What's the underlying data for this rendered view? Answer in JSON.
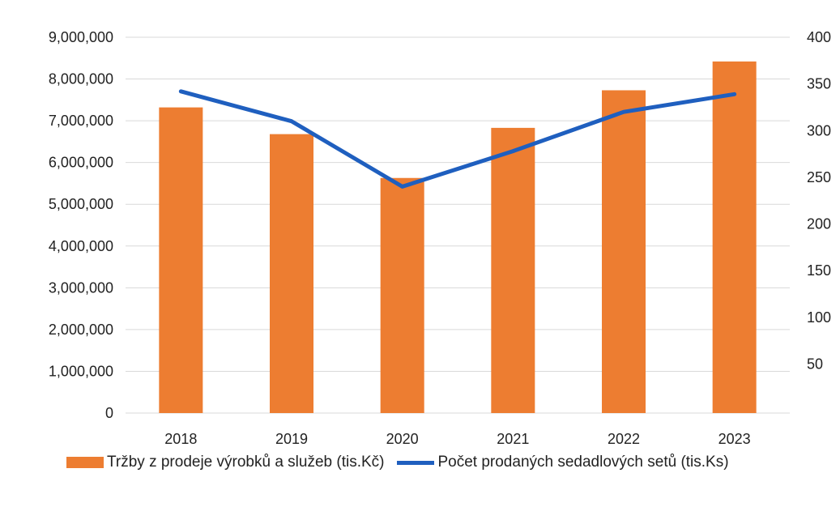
{
  "chart_data": {
    "type": "bar",
    "categories": [
      "2018",
      "2019",
      "2020",
      "2021",
      "2022",
      "2023"
    ],
    "series": [
      {
        "name": "Tržby z prodeje výrobků a služeb (tis.Kč)",
        "type": "bar",
        "axis": "left",
        "color": "#ED7D31",
        "values": [
          7320000,
          6680000,
          5630000,
          6830000,
          7730000,
          8420000
        ]
      },
      {
        "name": "Počet prodaných sedadlových setů (tis.Ks)",
        "type": "line",
        "axis": "right",
        "color": "#1F5FBF",
        "values": [
          342,
          310,
          240,
          278,
          320,
          339
        ]
      }
    ],
    "y_left": {
      "range": [
        0,
        9000000
      ],
      "ticks": [
        0,
        1000000,
        2000000,
        3000000,
        4000000,
        5000000,
        6000000,
        7000000,
        8000000,
        9000000
      ],
      "tick_labels": [
        "0",
        "1,000,000",
        "2,000,000",
        "3,000,000",
        "4,000,000",
        "5,000,000",
        "6,000,000",
        "7,000,000",
        "8,000,000",
        "9,000,000"
      ]
    },
    "y_right": {
      "range": [
        0,
        400
      ],
      "ticks": [
        50,
        100,
        150,
        200,
        250,
        300,
        350,
        400
      ],
      "tick_labels": [
        "50",
        "100",
        "150",
        "200",
        "250",
        "300",
        "350",
        "400"
      ]
    },
    "grid": true,
    "legend_position": "bottom"
  }
}
